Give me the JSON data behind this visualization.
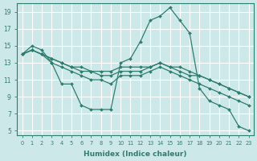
{
  "xlabel": "Humidex (Indice chaleur)",
  "bg_color": "#cde8e8",
  "grid_color": "#b8d8d8",
  "line_color": "#2e7d6e",
  "xlim": [
    -0.5,
    23.5
  ],
  "ylim": [
    4.5,
    20.0
  ],
  "yticks": [
    5,
    7,
    9,
    11,
    13,
    15,
    17,
    19
  ],
  "xticks": [
    0,
    1,
    2,
    3,
    4,
    5,
    6,
    7,
    8,
    9,
    10,
    11,
    12,
    13,
    14,
    15,
    16,
    17,
    18,
    19,
    20,
    21,
    22,
    23
  ],
  "series": [
    [
      14.0,
      15.0,
      14.5,
      13.0,
      10.5,
      10.5,
      8.0,
      7.5,
      7.5,
      7.5,
      13.0,
      13.5,
      15.5,
      18.0,
      18.5,
      19.5,
      18.0,
      16.5,
      10.0,
      8.5,
      8.0,
      7.5,
      5.5,
      5.0
    ],
    [
      14.0,
      14.5,
      14.0,
      13.5,
      13.0,
      12.5,
      12.0,
      12.0,
      11.5,
      11.5,
      12.0,
      12.0,
      12.0,
      12.5,
      13.0,
      12.5,
      12.5,
      12.0,
      11.5,
      11.0,
      10.5,
      10.0,
      9.5,
      9.0
    ],
    [
      14.0,
      14.5,
      14.0,
      13.5,
      13.0,
      12.5,
      12.5,
      12.0,
      12.0,
      12.0,
      12.5,
      12.5,
      12.5,
      12.5,
      13.0,
      12.5,
      12.0,
      11.5,
      11.5,
      11.0,
      10.5,
      10.0,
      9.5,
      9.0
    ],
    [
      14.0,
      14.5,
      14.0,
      13.0,
      12.5,
      12.0,
      11.5,
      11.0,
      11.0,
      10.5,
      11.5,
      11.5,
      11.5,
      12.0,
      12.5,
      12.0,
      11.5,
      11.0,
      10.5,
      10.0,
      9.5,
      9.0,
      8.5,
      8.0
    ]
  ]
}
